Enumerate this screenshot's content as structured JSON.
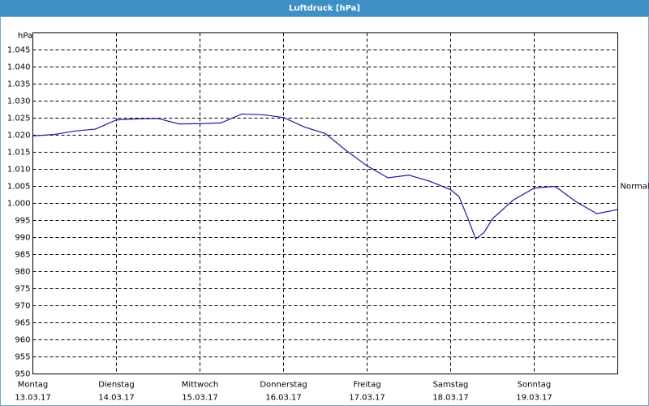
{
  "chart_data": {
    "type": "line",
    "title": "Luftdruck [hPa]",
    "y_unit": "hPa",
    "xlim": [
      0,
      7
    ],
    "xticks": [
      0,
      1,
      2,
      3,
      4,
      5,
      6
    ],
    "xtick_days": [
      "Montag",
      "Dienstag",
      "Mittwoch",
      "Donnerstag",
      "Freitag",
      "Samstag",
      "Sonntag"
    ],
    "xtick_dates": [
      "13.03.17",
      "14.03.17",
      "15.03.17",
      "16.03.17",
      "17.03.17",
      "18.03.17",
      "19.03.17"
    ],
    "ylim": [
      950,
      1050
    ],
    "yticks": [
      {
        "value": 950,
        "label": "950"
      },
      {
        "value": 955,
        "label": "955"
      },
      {
        "value": 960,
        "label": "960"
      },
      {
        "value": 965,
        "label": "965"
      },
      {
        "value": 970,
        "label": "970"
      },
      {
        "value": 975,
        "label": "975"
      },
      {
        "value": 980,
        "label": "980"
      },
      {
        "value": 985,
        "label": "985"
      },
      {
        "value": 990,
        "label": "990"
      },
      {
        "value": 995,
        "label": "995"
      },
      {
        "value": 1000,
        "label": "1.000"
      },
      {
        "value": 1005,
        "label": "1.005"
      },
      {
        "value": 1010,
        "label": "1.010"
      },
      {
        "value": 1015,
        "label": "1.015"
      },
      {
        "value": 1020,
        "label": "1.020"
      },
      {
        "value": 1025,
        "label": "1.025"
      },
      {
        "value": 1030,
        "label": "1.030"
      },
      {
        "value": 1035,
        "label": "1.035"
      },
      {
        "value": 1040,
        "label": "1.040"
      },
      {
        "value": 1045,
        "label": "1.045"
      }
    ],
    "grid": true,
    "normal": {
      "label": "Normal",
      "value": 1005
    },
    "series": [
      {
        "color": "#1a1aa0",
        "x": [
          0,
          0.25,
          0.5,
          0.75,
          1,
          1.25,
          1.5,
          1.75,
          2,
          2.25,
          2.5,
          2.75,
          3,
          3.25,
          3.5,
          3.75,
          4,
          4.25,
          4.5,
          4.75,
          5,
          5.1,
          5.2,
          5.3,
          5.4,
          5.5,
          5.75,
          6,
          6.25,
          6.5,
          6.75,
          7
        ],
        "values": [
          1019.8,
          1020.2,
          1021.2,
          1021.8,
          1024.5,
          1024.8,
          1024.9,
          1023.3,
          1023.4,
          1023.6,
          1026.2,
          1026,
          1025.2,
          1022.4,
          1020.5,
          1015.5,
          1011,
          1007.5,
          1008.3,
          1006.5,
          1004,
          1002,
          996,
          989.6,
          991.5,
          995.5,
          1001,
          1004.5,
          1005,
          1000.5,
          997,
          998.2
        ]
      }
    ]
  }
}
